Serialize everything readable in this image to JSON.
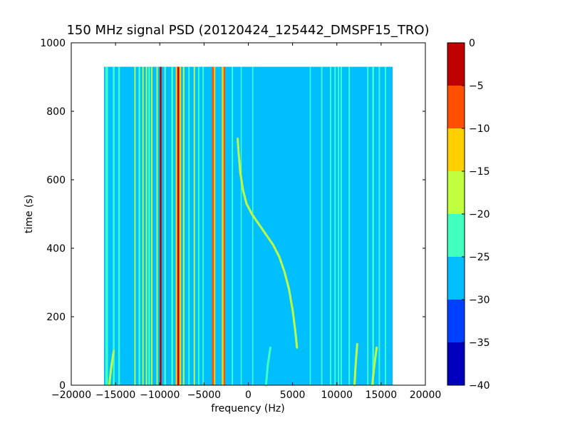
{
  "chart_data": {
    "type": "heatmap",
    "title": "150 MHz signal PSD (20120424_125442_DMSPF15_TRO)",
    "xlabel": "frequency (Hz)",
    "ylabel": "time (s)",
    "xlim": [
      -20000,
      20000
    ],
    "ylim": [
      0,
      1000
    ],
    "xticks": [
      -20000,
      -15000,
      -10000,
      -5000,
      0,
      5000,
      10000,
      15000,
      20000
    ],
    "xtick_labels": [
      "−20000",
      "−15000",
      "−10000",
      "−5000",
      "0",
      "5000",
      "10000",
      "15000",
      "20000"
    ],
    "yticks": [
      0,
      200,
      400,
      600,
      800,
      1000
    ],
    "ytick_labels": [
      "0",
      "200",
      "400",
      "600",
      "800",
      "1000"
    ],
    "data_extent": {
      "x": [
        -16300,
        16300
      ],
      "y": [
        0,
        930
      ]
    },
    "background_level": -27.5,
    "colormap": "jet",
    "colorbar": {
      "levels": [
        -40,
        -35,
        -30,
        -25,
        -20,
        -15,
        -10,
        -5,
        0
      ],
      "tick_labels": [
        "−40",
        "−35",
        "−30",
        "−25",
        "−20",
        "−15",
        "−10",
        "−5",
        "0"
      ],
      "colors": [
        "#0000bf",
        "#0040ff",
        "#00bfff",
        "#40ffbf",
        "#bfff40",
        "#ffd000",
        "#ff5000",
        "#c00000"
      ]
    },
    "vertical_features": [
      {
        "freq": -16000,
        "level": -22.5,
        "width_hz": 300
      },
      {
        "freq": -15200,
        "level": -22.5,
        "width_hz": 200
      },
      {
        "freq": -14600,
        "level": -22.5,
        "width_hz": 200
      },
      {
        "freq": -12800,
        "level": -17.5,
        "width_hz": 150
      },
      {
        "freq": -12300,
        "level": -22.5,
        "width_hz": 200
      },
      {
        "freq": -11900,
        "level": -17.5,
        "width_hz": 150
      },
      {
        "freq": -11500,
        "level": -17.5,
        "width_hz": 150
      },
      {
        "freq": -11200,
        "level": -22.5,
        "width_hz": 200
      },
      {
        "freq": -10900,
        "level": -17.5,
        "width_hz": 150
      },
      {
        "freq": -10300,
        "level": -17.5,
        "width_hz": 150
      },
      {
        "freq": -9900,
        "level": -2.5,
        "width_hz": 200
      },
      {
        "freq": -9400,
        "level": -22.5,
        "width_hz": 200
      },
      {
        "freq": -8600,
        "level": -22.5,
        "width_hz": 200
      },
      {
        "freq": -8100,
        "level": -12.5,
        "width_hz": 200
      },
      {
        "freq": -7900,
        "level": -2.5,
        "width_hz": 250
      },
      {
        "freq": -7700,
        "level": -12.5,
        "width_hz": 200
      },
      {
        "freq": -7300,
        "level": -17.5,
        "width_hz": 150
      },
      {
        "freq": -6700,
        "level": -22.5,
        "width_hz": 150
      },
      {
        "freq": -6100,
        "level": -17.5,
        "width_hz": 150
      },
      {
        "freq": -5600,
        "level": -22.5,
        "width_hz": 150
      },
      {
        "freq": -5100,
        "level": -22.5,
        "width_hz": 150
      },
      {
        "freq": -4000,
        "level": -7.5,
        "width_hz": 200
      },
      {
        "freq": -3800,
        "level": -12.5,
        "width_hz": 150
      },
      {
        "freq": -2900,
        "level": -12.5,
        "width_hz": 200
      },
      {
        "freq": -2700,
        "level": -7.5,
        "width_hz": 150
      },
      {
        "freq": -1800,
        "level": -22.5,
        "width_hz": 150
      },
      {
        "freq": -800,
        "level": -22.5,
        "width_hz": 120
      },
      {
        "freq": 500,
        "level": -22.5,
        "width_hz": 120
      },
      {
        "freq": 7000,
        "level": -22.5,
        "width_hz": 120
      },
      {
        "freq": 8300,
        "level": -22.5,
        "width_hz": 150
      },
      {
        "freq": 9300,
        "level": -22.5,
        "width_hz": 150
      },
      {
        "freq": 9800,
        "level": -22.5,
        "width_hz": 150
      },
      {
        "freq": 10200,
        "level": -22.5,
        "width_hz": 150
      },
      {
        "freq": 10500,
        "level": -22.5,
        "width_hz": 150
      },
      {
        "freq": 11400,
        "level": -22.5,
        "width_hz": 150
      },
      {
        "freq": 13500,
        "level": -22.5,
        "width_hz": 150
      },
      {
        "freq": 14100,
        "level": -22.5,
        "width_hz": 200
      },
      {
        "freq": 14800,
        "level": -22.5,
        "width_hz": 150
      },
      {
        "freq": 15500,
        "level": -22.5,
        "width_hz": 150
      }
    ],
    "doppler_trace": {
      "level": -17.5,
      "points": [
        [
          -1200,
          720
        ],
        [
          -1100,
          680
        ],
        [
          -900,
          620
        ],
        [
          -600,
          570
        ],
        [
          -200,
          530
        ],
        [
          400,
          500
        ],
        [
          1200,
          470
        ],
        [
          2000,
          440
        ],
        [
          2800,
          410
        ],
        [
          3500,
          375
        ],
        [
          4100,
          330
        ],
        [
          4600,
          280
        ],
        [
          5000,
          220
        ],
        [
          5300,
          160
        ],
        [
          5500,
          110
        ]
      ]
    },
    "short_traces": [
      {
        "level": -17.5,
        "points": [
          [
            -15700,
            0
          ],
          [
            -15500,
            50
          ],
          [
            -15200,
            100
          ]
        ]
      },
      {
        "level": -17.5,
        "points": [
          [
            12000,
            0
          ],
          [
            12100,
            50
          ],
          [
            12300,
            120
          ]
        ]
      },
      {
        "level": -17.5,
        "points": [
          [
            14000,
            0
          ],
          [
            14200,
            50
          ],
          [
            14500,
            110
          ]
        ]
      },
      {
        "level": -22.5,
        "points": [
          [
            2000,
            0
          ],
          [
            2200,
            60
          ],
          [
            2500,
            110
          ]
        ]
      }
    ]
  }
}
